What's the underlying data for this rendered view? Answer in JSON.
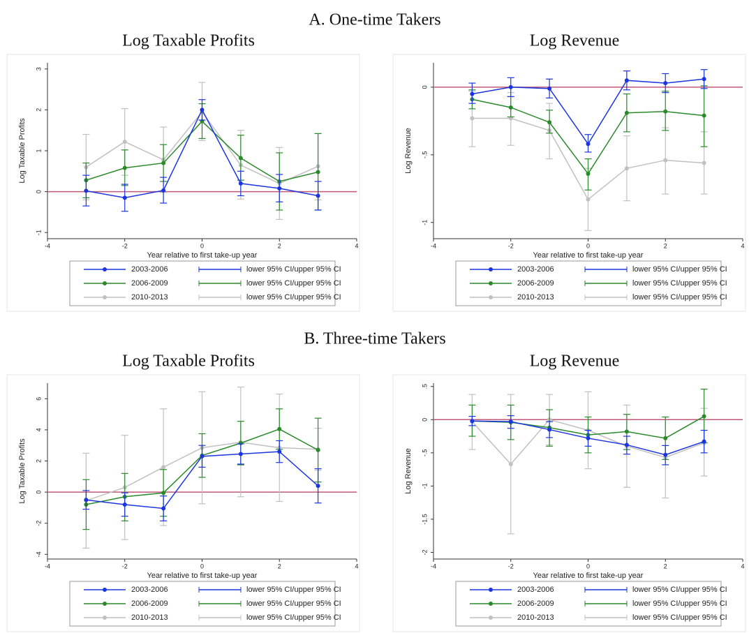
{
  "section_titles": [
    "A. One-time Takers",
    "B. Three-time Takers"
  ],
  "chart_data": [
    {
      "type": "line",
      "title": "Log Taxable Profits",
      "x_label": "Year relative to first take-up year",
      "y_label": "Log Taxable Profits",
      "x": [
        -3,
        -2,
        -1,
        0,
        1,
        2,
        3
      ],
      "xlim": [
        -4,
        4
      ],
      "xticks": [
        -4,
        -2,
        0,
        2,
        4
      ],
      "ylim": [
        -1.15,
        3.15
      ],
      "yticks": [
        -1,
        0,
        1,
        2,
        3
      ],
      "hline": {
        "value": 0,
        "color": "#c0587a"
      },
      "series": [
        {
          "name": "2003-2006",
          "ci_name": "lower 95% CI/upper 95% CI",
          "color": "#1a35e0",
          "values": [
            0.02,
            -0.15,
            0.03,
            2.0,
            0.2,
            0.08,
            -0.1
          ],
          "lower": [
            -0.35,
            -0.48,
            -0.28,
            1.75,
            -0.1,
            -0.25,
            -0.45
          ],
          "upper": [
            0.4,
            0.18,
            0.35,
            2.25,
            0.5,
            0.42,
            0.25
          ]
        },
        {
          "name": "2006-2009",
          "ci_name": "lower 95% CI/upper 95% CI",
          "color": "#2a8a2a",
          "values": [
            0.28,
            0.58,
            0.7,
            1.72,
            0.82,
            0.25,
            0.48
          ],
          "lower": [
            -0.15,
            0.15,
            0.25,
            1.3,
            0.28,
            -0.45,
            -0.45
          ],
          "upper": [
            0.7,
            1.02,
            1.15,
            2.15,
            1.38,
            0.95,
            1.42
          ]
        },
        {
          "name": "2010-2013",
          "ci_name": "lower 95% CI/upper 95% CI",
          "color": "#c0c0c0",
          "values": [
            0.6,
            1.22,
            0.78,
            1.95,
            0.65,
            0.2,
            0.62
          ],
          "lower": [
            -0.2,
            0.4,
            -0.02,
            1.25,
            -0.18,
            -0.68,
            -0.2
          ],
          "upper": [
            1.4,
            2.03,
            1.58,
            2.67,
            1.5,
            1.08,
            1.42
          ]
        }
      ]
    },
    {
      "type": "line",
      "title": "Log Revenue",
      "x_label": "Year relative to first take-up year",
      "y_label": "Log Revenue",
      "x": [
        -3,
        -2,
        -1,
        0,
        1,
        2,
        3
      ],
      "xlim": [
        -4,
        4
      ],
      "xticks": [
        -4,
        -2,
        0,
        2,
        4
      ],
      "ylim": [
        -1.12,
        0.18
      ],
      "yticks": [
        -1,
        {
          "value": -0.5,
          "label": "-.5"
        },
        0
      ],
      "hline": {
        "value": 0,
        "color": "#c0587a"
      },
      "series": [
        {
          "name": "2003-2006",
          "ci_name": "lower 95% CI/upper 95% CI",
          "color": "#1a35e0",
          "values": [
            -0.05,
            0.0,
            -0.01,
            -0.42,
            0.05,
            0.03,
            0.06
          ],
          "lower": [
            -0.12,
            -0.07,
            -0.08,
            -0.48,
            -0.02,
            -0.04,
            -0.01
          ],
          "upper": [
            0.03,
            0.07,
            0.06,
            -0.35,
            0.12,
            0.1,
            0.13
          ]
        },
        {
          "name": "2006-2009",
          "ci_name": "lower 95% CI/upper 95% CI",
          "color": "#2a8a2a",
          "values": [
            -0.09,
            -0.15,
            -0.26,
            -0.64,
            -0.19,
            -0.18,
            -0.21
          ],
          "lower": [
            -0.16,
            -0.22,
            -0.34,
            -0.76,
            -0.33,
            -0.32,
            -0.44
          ],
          "upper": [
            -0.02,
            -0.07,
            -0.17,
            -0.53,
            -0.05,
            -0.03,
            0.01
          ]
        },
        {
          "name": "2010-2013",
          "ci_name": "lower 95% CI/upper 95% CI",
          "color": "#c0c0c0",
          "values": [
            -0.23,
            -0.23,
            -0.32,
            -0.83,
            -0.6,
            -0.54,
            -0.56
          ],
          "lower": [
            -0.44,
            -0.43,
            -0.53,
            -1.06,
            -0.84,
            -0.79,
            -0.79
          ],
          "upper": [
            -0.03,
            -0.04,
            -0.12,
            -0.6,
            -0.36,
            -0.3,
            -0.33
          ]
        }
      ]
    },
    {
      "type": "line",
      "title": "Log Taxable Profits",
      "x_label": "Year relative to first take-up year",
      "y_label": "Log Taxable Profits",
      "x": [
        -3,
        -2,
        -1,
        0,
        1,
        2,
        3
      ],
      "xlim": [
        -4,
        4
      ],
      "xticks": [
        -4,
        -2,
        0,
        2,
        4
      ],
      "ylim": [
        -4.3,
        7
      ],
      "yticks": [
        -4,
        -2,
        0,
        2,
        4,
        6
      ],
      "hline": {
        "value": 0,
        "color": "#c0587a"
      },
      "series": [
        {
          "name": "2003-2006",
          "ci_name": "lower 95% CI/upper 95% CI",
          "color": "#1a35e0",
          "values": [
            -0.5,
            -0.8,
            -1.05,
            2.3,
            2.45,
            2.6,
            0.4
          ],
          "lower": [
            -1.1,
            -1.55,
            -1.85,
            1.6,
            1.8,
            1.9,
            -0.7
          ],
          "upper": [
            0.1,
            -0.05,
            -0.25,
            3.0,
            3.1,
            3.3,
            1.5
          ]
        },
        {
          "name": "2006-2009",
          "ci_name": "lower 95% CI/upper 95% CI",
          "color": "#2a8a2a",
          "values": [
            -0.8,
            -0.3,
            -0.05,
            2.35,
            3.15,
            4.05,
            2.7
          ],
          "lower": [
            -2.4,
            -1.85,
            -1.55,
            0.95,
            1.75,
            2.75,
            0.65
          ],
          "upper": [
            0.8,
            1.2,
            1.45,
            3.75,
            4.55,
            5.35,
            4.75
          ]
        },
        {
          "name": "2010-2013",
          "ci_name": "lower 95% CI/upper 95% CI",
          "color": "#c0c0c0",
          "values": [
            -0.55,
            0.3,
            1.6,
            2.85,
            3.2,
            2.85,
            2.75
          ],
          "lower": [
            -3.6,
            -3.05,
            -2.15,
            -0.75,
            -0.3,
            -0.6,
            1.4
          ],
          "upper": [
            2.5,
            3.65,
            5.35,
            6.45,
            6.75,
            6.3,
            4.1
          ]
        }
      ]
    },
    {
      "type": "line",
      "title": "Log Revenue",
      "x_label": "Year relative to first take-up year",
      "y_label": "Log Revenue",
      "x": [
        -3,
        -2,
        -1,
        0,
        1,
        2,
        3
      ],
      "xlim": [
        -4,
        4
      ],
      "xticks": [
        -4,
        -2,
        0,
        2,
        4
      ],
      "ylim": [
        -2.1,
        0.55
      ],
      "yticks": [
        -2,
        {
          "value": -1.5,
          "label": "-1.5"
        },
        -1,
        {
          "value": -0.5,
          "label": "-.5"
        },
        0,
        {
          "value": 0.5,
          "label": ".5"
        }
      ],
      "hline": {
        "value": 0,
        "color": "#c0587a"
      },
      "series": [
        {
          "name": "2003-2006",
          "ci_name": "lower 95% CI/upper 95% CI",
          "color": "#1a35e0",
          "values": [
            -0.02,
            -0.03,
            -0.15,
            -0.28,
            -0.38,
            -0.53,
            -0.33
          ],
          "lower": [
            -0.09,
            -0.13,
            -0.27,
            -0.4,
            -0.52,
            -0.68,
            -0.5
          ],
          "upper": [
            0.05,
            0.06,
            -0.03,
            -0.16,
            -0.25,
            -0.39,
            -0.16
          ]
        },
        {
          "name": "2006-2009",
          "ci_name": "lower 95% CI/upper 95% CI",
          "color": "#2a8a2a",
          "values": [
            -0.02,
            -0.04,
            -0.12,
            -0.23,
            -0.18,
            -0.28,
            0.05
          ],
          "lower": [
            -0.25,
            -0.3,
            -0.4,
            -0.5,
            -0.45,
            -0.6,
            -0.35
          ],
          "upper": [
            0.22,
            0.22,
            0.15,
            0.04,
            0.08,
            0.04,
            0.46
          ]
        },
        {
          "name": "2010-2013",
          "ci_name": "lower 95% CI/upper 95% CI",
          "color": "#c0c0c0",
          "values": [
            -0.03,
            -0.67,
            0.0,
            -0.16,
            -0.4,
            -0.57,
            -0.35
          ],
          "lower": [
            -0.45,
            -1.72,
            -0.38,
            -0.74,
            -1.02,
            -1.18,
            -0.85
          ],
          "upper": [
            0.38,
            0.38,
            0.38,
            0.42,
            0.22,
            0.04,
            0.17
          ]
        }
      ]
    }
  ]
}
